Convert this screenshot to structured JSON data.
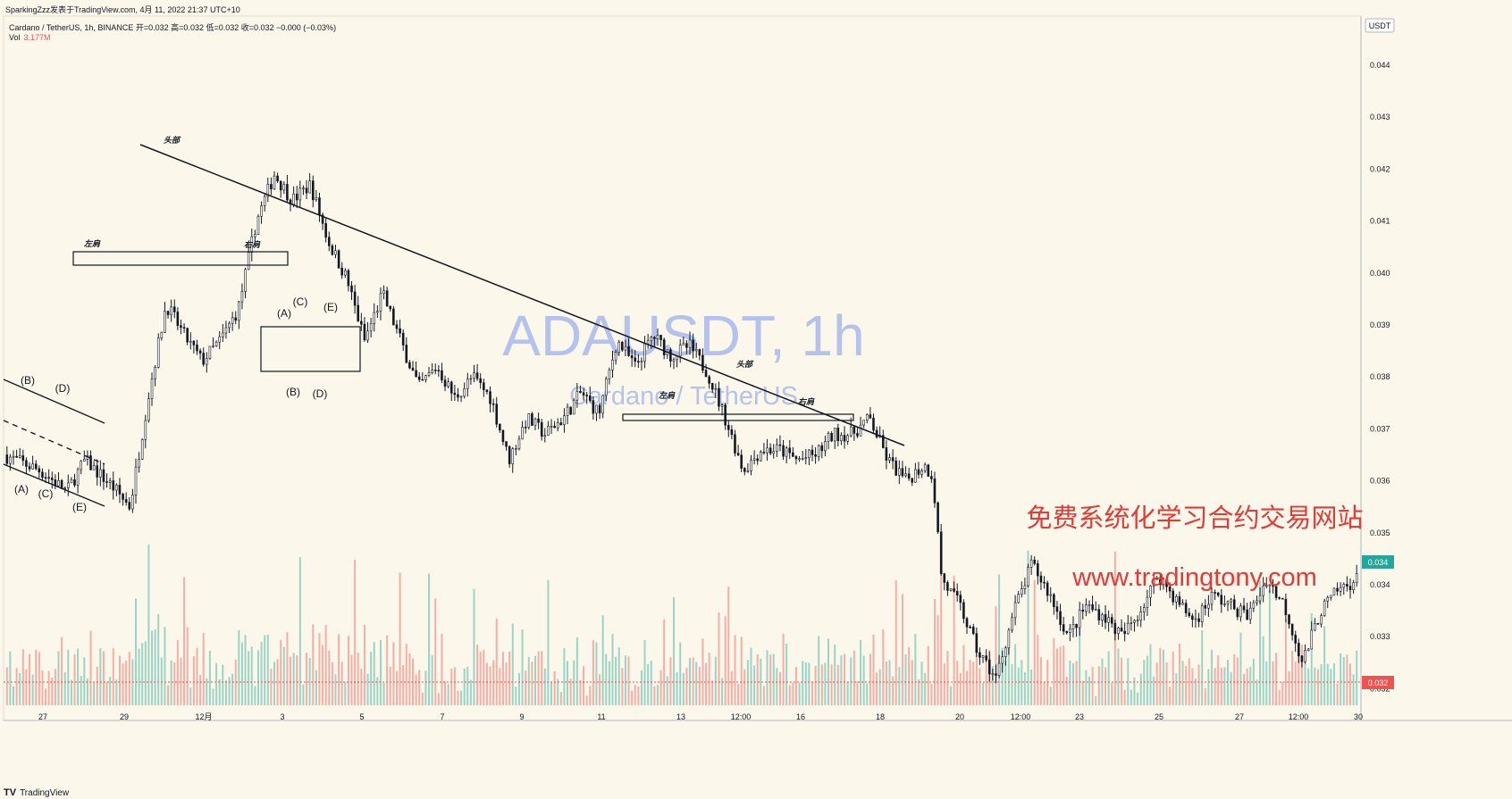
{
  "header": {
    "credit": "SparkingZzz发表于TradingView.com,  4月 11, 2022 21:37 UTC+10",
    "series_info": "Cardano / TetherUS, 1h, BINANCE  开=0.032  高=0.032  低=0.032  收=0.032  −0.000 (−0.03%)",
    "vol_label": "Vol",
    "vol_value": "3.177M"
  },
  "watermark": {
    "symbol": "ADAUSDT, 1h",
    "name": "Cardano / TetherUS"
  },
  "promo": {
    "line1": "免费系统化学习合约交易网站",
    "line2": "www.tradingtony.com"
  },
  "footer": {
    "logo": "TradingView"
  },
  "colors": {
    "background": "#fbf8eb",
    "up": "#26a69a",
    "down": "#ef5350",
    "candle": "#131722",
    "watermark": "#b4c2ec",
    "promo": "#e53935",
    "price_tag": "#26a69a",
    "low_tag": "#ef5350"
  },
  "chart_data": {
    "type": "candlestick",
    "symbol": "ADAUSDT",
    "timeframe": "1h",
    "exchange": "BINANCE",
    "currency_label": "USDT",
    "y_ticks": [
      "0.044",
      "0.043",
      "0.042",
      "0.041",
      "0.040",
      "0.039",
      "0.038",
      "0.037",
      "0.036",
      "0.035",
      "0.034",
      "0.033",
      "0.032"
    ],
    "x_ticks": [
      "27",
      "29",
      "12月",
      "3",
      "5",
      "7",
      "9",
      "11",
      "13",
      "12:00",
      "16",
      "18",
      "20",
      "12:00",
      "23",
      "25",
      "27",
      "12:00",
      "30"
    ],
    "last_price": "0.034",
    "low_price_label": "0.032",
    "price_path": [
      [
        0,
        0.0365
      ],
      [
        2,
        0.0362
      ],
      [
        3.5,
        0.0358
      ],
      [
        4.5,
        0.0364
      ],
      [
        6,
        0.0359
      ],
      [
        7,
        0.0355
      ],
      [
        8,
        0.0376
      ],
      [
        9,
        0.0394
      ],
      [
        10,
        0.0388
      ],
      [
        11,
        0.0383
      ],
      [
        12,
        0.0387
      ],
      [
        13,
        0.0393
      ],
      [
        14,
        0.041
      ],
      [
        15,
        0.0419
      ],
      [
        16,
        0.0414
      ],
      [
        17,
        0.0417
      ],
      [
        18,
        0.0406
      ],
      [
        19,
        0.0399
      ],
      [
        20,
        0.0387
      ],
      [
        21,
        0.0396
      ],
      [
        22,
        0.0387
      ],
      [
        23,
        0.0378
      ],
      [
        24,
        0.0382
      ],
      [
        25,
        0.0376
      ],
      [
        26,
        0.038
      ],
      [
        27,
        0.0376
      ],
      [
        28,
        0.0364
      ],
      [
        29,
        0.0372
      ],
      [
        30,
        0.0369
      ],
      [
        31,
        0.0372
      ],
      [
        32,
        0.0377
      ],
      [
        33,
        0.0373
      ],
      [
        34,
        0.0387
      ],
      [
        35,
        0.0382
      ],
      [
        36,
        0.0388
      ],
      [
        37,
        0.0384
      ],
      [
        38,
        0.0386
      ],
      [
        39,
        0.0381
      ],
      [
        40,
        0.0372
      ],
      [
        41,
        0.0362
      ],
      [
        42,
        0.0366
      ],
      [
        43,
        0.0366
      ],
      [
        44,
        0.0364
      ],
      [
        45,
        0.0365
      ],
      [
        46,
        0.0369
      ],
      [
        47,
        0.0369
      ],
      [
        48,
        0.0372
      ],
      [
        49,
        0.0364
      ],
      [
        50,
        0.036
      ],
      [
        51,
        0.0363
      ],
      [
        51.5,
        0.0361
      ],
      [
        52,
        0.0341
      ],
      [
        53,
        0.0336
      ],
      [
        54,
        0.0327
      ],
      [
        55,
        0.0322
      ],
      [
        56,
        0.0335
      ],
      [
        57,
        0.0344
      ],
      [
        58,
        0.0338
      ],
      [
        59,
        0.033
      ],
      [
        60,
        0.0336
      ],
      [
        61,
        0.0334
      ],
      [
        62,
        0.033
      ],
      [
        63,
        0.0335
      ],
      [
        64,
        0.0342
      ],
      [
        65,
        0.0337
      ],
      [
        66,
        0.0333
      ],
      [
        67,
        0.0338
      ],
      [
        68,
        0.0336
      ],
      [
        69,
        0.0334
      ],
      [
        70,
        0.0341
      ],
      [
        71,
        0.0336
      ],
      [
        72,
        0.0325
      ],
      [
        73,
        0.0335
      ],
      [
        74,
        0.0339
      ],
      [
        75,
        0.0341
      ]
    ],
    "volume_note": "histogram of hourly volume below price",
    "trend_line": {
      "from": [
        8.2,
        0.0421
      ],
      "to": [
        55.0,
        0.0361
      ]
    },
    "annotations": {
      "left_shoulder_1": "左肩",
      "head_1": "头部",
      "right_shoulder_1": "右肩",
      "left_shoulder_2": "左肩",
      "head_2": "头部",
      "right_shoulder_2": "右肩",
      "wave_A1": "(A)",
      "wave_B1": "(B)",
      "wave_C1": "(C)",
      "wave_D1": "(D)",
      "wave_E1": "(E)",
      "wave_A2": "(A)",
      "wave_B2": "(B)",
      "wave_C2": "(C)",
      "wave_D2": "(D)",
      "wave_E2": "(E)"
    }
  }
}
